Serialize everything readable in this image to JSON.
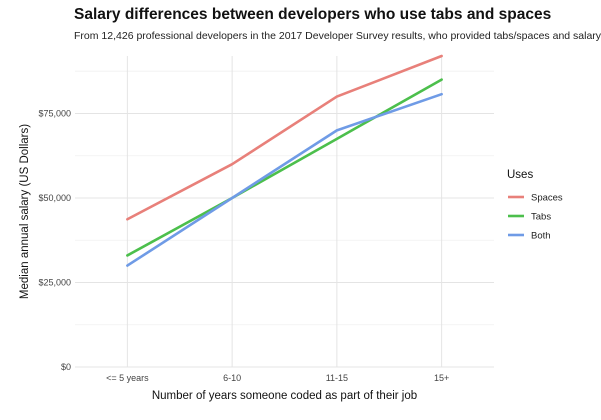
{
  "chart_data": {
    "type": "line",
    "title": "Salary differences between developers who use tabs and spaces",
    "subtitle": "From 12,426 professional developers in the 2017 Developer Survey results, who provided tabs/spaces and salary",
    "xlabel": "Number of years someone coded as part of their job",
    "ylabel": "Median annual salary (US Dollars)",
    "categories": [
      "<= 5 years",
      "6-10",
      "11-15",
      "15+"
    ],
    "yticks": [
      0,
      25000,
      50000,
      75000
    ],
    "ytick_labels": [
      "$0",
      "$25,000",
      "$50,000",
      "$75,000"
    ],
    "ylim": [
      0,
      92000
    ],
    "grid": true,
    "legend": {
      "title": "Uses",
      "placement": "right"
    },
    "series": [
      {
        "name": "Spaces",
        "color": "#e8807a",
        "values": [
          43700,
          60000,
          80000,
          92000
        ]
      },
      {
        "name": "Tabs",
        "color": "#4cbf4c",
        "values": [
          33000,
          50000,
          67500,
          85000
        ]
      },
      {
        "name": "Both",
        "color": "#6f9be6",
        "values": [
          30000,
          50000,
          70000,
          80700
        ]
      }
    ]
  }
}
